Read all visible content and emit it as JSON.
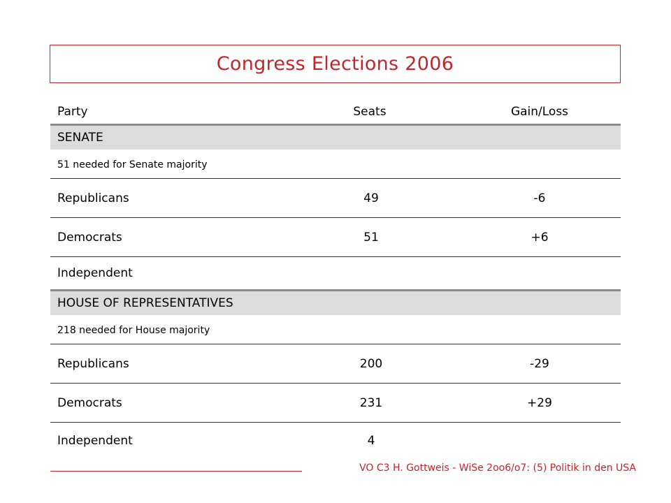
{
  "title": "Congress Elections 2006",
  "columns": {
    "party": "Party",
    "seats": "Seats",
    "gain_loss": "Gain/Loss"
  },
  "senate": {
    "heading": "SENATE",
    "note": "51 needed for Senate majority",
    "rows": [
      {
        "party": "Republicans",
        "seats": "49",
        "gain_loss": "-6"
      },
      {
        "party": "Democrats",
        "seats": "51",
        "gain_loss": "+6"
      },
      {
        "party": "Independent",
        "seats": "",
        "gain_loss": ""
      }
    ]
  },
  "house": {
    "heading": "HOUSE OF REPRESENTATIVES",
    "note": "218 needed for House majority",
    "rows": [
      {
        "party": "Republicans",
        "seats": "200",
        "gain_loss": "-29"
      },
      {
        "party": "Democrats",
        "seats": "231",
        "gain_loss": "+29"
      },
      {
        "party": "Independent",
        "seats": "4",
        "gain_loss": ""
      }
    ]
  },
  "footer": {
    "text": "VO C3 H. Gottweis - WiSe 2oo6/o7: (5) Politik in den USA"
  },
  "colors": {
    "accent": "#c0272d",
    "section_band": "#dcdcdc",
    "rule_thick": "#8c8c8c",
    "rule_thin": "#333333"
  }
}
